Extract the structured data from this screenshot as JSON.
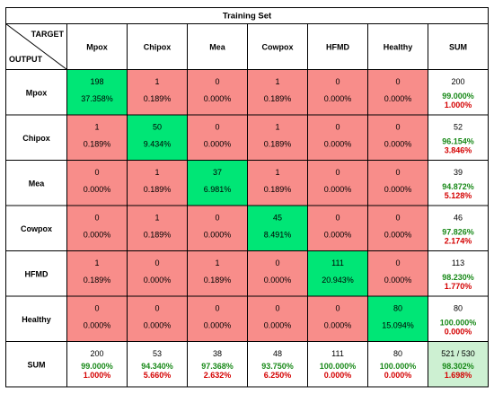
{
  "chart_data": {
    "type": "heatmap",
    "title": "Training Set",
    "corner_top": "TARGET",
    "corner_bottom": "OUTPUT",
    "columns": [
      "Mpox",
      "Chipox",
      "Mea",
      "Cowpox",
      "HFMD",
      "Healthy",
      "SUM"
    ],
    "rows": [
      {
        "label": "Mpox",
        "cells": [
          {
            "count": "198",
            "pct": "37.358%"
          },
          {
            "count": "1",
            "pct": "0.189%"
          },
          {
            "count": "0",
            "pct": "0.000%"
          },
          {
            "count": "1",
            "pct": "0.189%"
          },
          {
            "count": "0",
            "pct": "0.000%"
          },
          {
            "count": "0",
            "pct": "0.000%"
          }
        ],
        "sum": {
          "count": "200",
          "good": "99.000%",
          "bad": "1.000%"
        }
      },
      {
        "label": "Chipox",
        "cells": [
          {
            "count": "1",
            "pct": "0.189%"
          },
          {
            "count": "50",
            "pct": "9.434%"
          },
          {
            "count": "0",
            "pct": "0.000%"
          },
          {
            "count": "1",
            "pct": "0.189%"
          },
          {
            "count": "0",
            "pct": "0.000%"
          },
          {
            "count": "0",
            "pct": "0.000%"
          }
        ],
        "sum": {
          "count": "52",
          "good": "96.154%",
          "bad": "3.846%"
        }
      },
      {
        "label": "Mea",
        "cells": [
          {
            "count": "0",
            "pct": "0.000%"
          },
          {
            "count": "1",
            "pct": "0.189%"
          },
          {
            "count": "37",
            "pct": "6.981%"
          },
          {
            "count": "1",
            "pct": "0.189%"
          },
          {
            "count": "0",
            "pct": "0.000%"
          },
          {
            "count": "0",
            "pct": "0.000%"
          }
        ],
        "sum": {
          "count": "39",
          "good": "94.872%",
          "bad": "5.128%"
        }
      },
      {
        "label": "Cowpox",
        "cells": [
          {
            "count": "0",
            "pct": "0.000%"
          },
          {
            "count": "1",
            "pct": "0.189%"
          },
          {
            "count": "0",
            "pct": "0.000%"
          },
          {
            "count": "45",
            "pct": "8.491%"
          },
          {
            "count": "0",
            "pct": "0.000%"
          },
          {
            "count": "0",
            "pct": "0.000%"
          }
        ],
        "sum": {
          "count": "46",
          "good": "97.826%",
          "bad": "2.174%"
        }
      },
      {
        "label": "HFMD",
        "cells": [
          {
            "count": "1",
            "pct": "0.189%"
          },
          {
            "count": "0",
            "pct": "0.000%"
          },
          {
            "count": "1",
            "pct": "0.189%"
          },
          {
            "count": "0",
            "pct": "0.000%"
          },
          {
            "count": "111",
            "pct": "20.943%"
          },
          {
            "count": "0",
            "pct": "0.000%"
          }
        ],
        "sum": {
          "count": "113",
          "good": "98.230%",
          "bad": "1.770%"
        }
      },
      {
        "label": "Healthy",
        "cells": [
          {
            "count": "0",
            "pct": "0.000%"
          },
          {
            "count": "0",
            "pct": "0.000%"
          },
          {
            "count": "0",
            "pct": "0.000%"
          },
          {
            "count": "0",
            "pct": "0.000%"
          },
          {
            "count": "0",
            "pct": "0.000%"
          },
          {
            "count": "80",
            "pct": "15.094%"
          }
        ],
        "sum": {
          "count": "80",
          "good": "100.000%",
          "bad": "0.000%"
        }
      }
    ],
    "sum_row": {
      "label": "SUM",
      "cells": [
        {
          "count": "200",
          "good": "99.000%",
          "bad": "1.000%"
        },
        {
          "count": "53",
          "good": "94.340%",
          "bad": "5.660%"
        },
        {
          "count": "38",
          "good": "97.368%",
          "bad": "2.632%"
        },
        {
          "count": "48",
          "good": "93.750%",
          "bad": "6.250%"
        },
        {
          "count": "111",
          "good": "100.000%",
          "bad": "0.000%"
        },
        {
          "count": "80",
          "good": "100.000%",
          "bad": "0.000%"
        }
      ],
      "total": {
        "count": "521 / 530",
        "good": "98.302%",
        "bad": "1.698%"
      }
    },
    "colors": {
      "diagonal": "#00e676",
      "off_diagonal": "#f88d8a",
      "total": "#cdf0d2",
      "good_text": "#1a8a1a",
      "bad_text": "#d40000",
      "border": "#000000"
    }
  }
}
